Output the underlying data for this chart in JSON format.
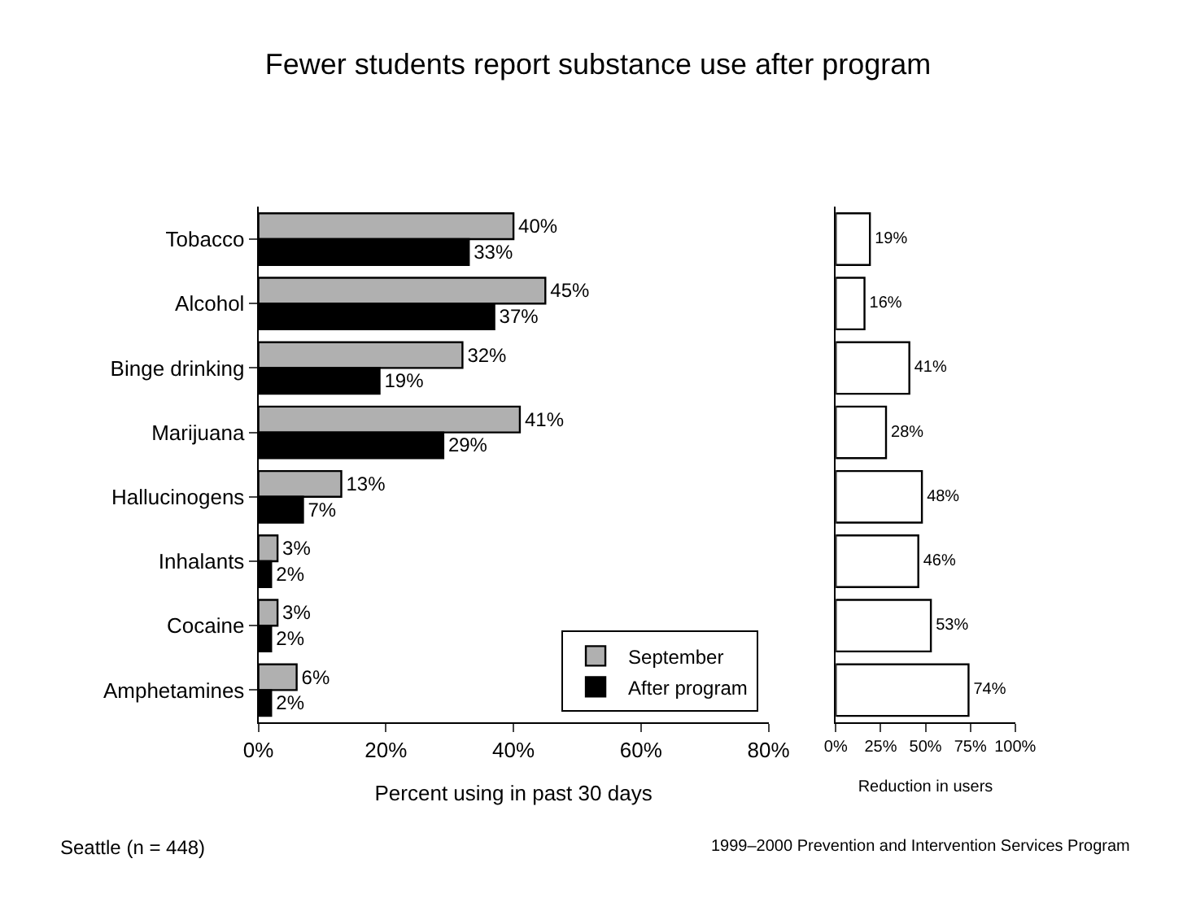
{
  "chart_data": [
    {
      "type": "bar",
      "orientation": "horizontal",
      "title": "Fewer students report substance use after program",
      "xlabel": "Percent using in past 30 days",
      "categories": [
        "Tobacco",
        "Alcohol",
        "Binge drinking",
        "Marijuana",
        "Hallucinogens",
        "Inhalants",
        "Cocaine",
        "Amphetamines"
      ],
      "series": [
        {
          "name": "September",
          "color": "#b0b0b0",
          "values": [
            40,
            45,
            32,
            41,
            13,
            3,
            3,
            6
          ],
          "value_labels": [
            "40%",
            "45%",
            "32%",
            "41%",
            "13%",
            "3%",
            "3%",
            "6%"
          ]
        },
        {
          "name": "After program",
          "color": "#000000",
          "values": [
            33,
            37,
            19,
            29,
            7,
            2,
            2,
            2
          ],
          "value_labels": [
            "33%",
            "37%",
            "19%",
            "29%",
            "7%",
            "2%",
            "2%",
            "2%"
          ]
        }
      ],
      "xlim": [
        0,
        80
      ],
      "xticks": [
        {
          "value": 0,
          "label": "0%"
        },
        {
          "value": 20,
          "label": "20%"
        },
        {
          "value": 40,
          "label": "40%"
        },
        {
          "value": 60,
          "label": "60%"
        },
        {
          "value": 80,
          "label": "80%"
        }
      ],
      "legend": "bottom right",
      "annotations": [
        "Seattle (n = 448)"
      ]
    },
    {
      "type": "bar",
      "orientation": "horizontal",
      "xlabel": "Reduction in users",
      "categories": [
        null,
        null,
        null,
        null,
        null,
        null,
        null,
        null
      ],
      "values": [
        19,
        16,
        41,
        28,
        48,
        46,
        53,
        74
      ],
      "value_labels": [
        "19%",
        "16%",
        "41%",
        "28%",
        "48%",
        "46%",
        "53%",
        "74%"
      ],
      "color": "#ffffff",
      "xlim": [
        0,
        100
      ],
      "xticks": [
        {
          "value": 0,
          "label": "0%"
        },
        {
          "value": 25,
          "label": "25%"
        },
        {
          "value": 50,
          "label": "50%"
        },
        {
          "value": 75,
          "label": "75%"
        },
        {
          "value": 100,
          "label": "100%"
        }
      ],
      "tick_labels": "x",
      "legend": false,
      "annotations": [
        "1999–2000 Prevention and Intervention Services Program"
      ]
    }
  ]
}
